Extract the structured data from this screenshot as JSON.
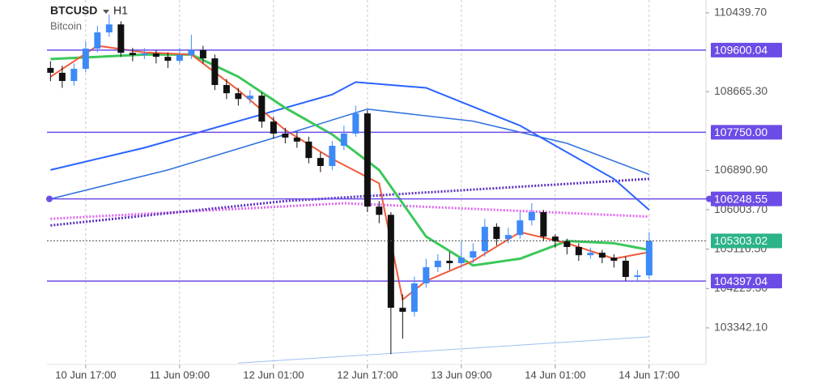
{
  "chart_data": {
    "type": "candlestick",
    "title": "BTCUSD",
    "timeframe": "H1",
    "subtitle": "Bitcoin",
    "xlim": [
      -0.6,
      111.4
    ],
    "ylim": [
      102520,
      110730
    ],
    "xticks": [
      {
        "value": 6,
        "label": "10 Jun 17:00"
      },
      {
        "value": 22,
        "label": "11 Jun 09:00"
      },
      {
        "value": 38,
        "label": "12 Jun 01:00"
      },
      {
        "value": 54,
        "label": "12 Jun 17:00"
      },
      {
        "value": 70,
        "label": "13 Jun 09:00"
      },
      {
        "value": 86,
        "label": "14 Jun 01:00"
      },
      {
        "value": 102,
        "label": "14 Jun 17:00"
      }
    ],
    "yticks": [
      {
        "value": 110439.7,
        "label": "110439.70"
      },
      {
        "value": 108665.3,
        "label": "108665.30"
      },
      {
        "value": 106890.9,
        "label": "106890.90"
      },
      {
        "value": 106003.7,
        "label": "106003.70"
      },
      {
        "value": 105116.5,
        "label": "105116.50"
      },
      {
        "value": 104229.3,
        "label": "104229.30"
      },
      {
        "value": 103342.1,
        "label": "103342.10"
      }
    ],
    "xgrid": true,
    "candles": {
      "up_color": "#3d8af7",
      "down_color": "#111111",
      "x": [
        0,
        2,
        4,
        6,
        8,
        10,
        12,
        14,
        16,
        18,
        20,
        22,
        24,
        26,
        28,
        30,
        32,
        34,
        36,
        38,
        40,
        42,
        44,
        46,
        48,
        50,
        52,
        54,
        56,
        58,
        60,
        62,
        64,
        66,
        68,
        70,
        72,
        74,
        76,
        78,
        80,
        82,
        84,
        86,
        88,
        90,
        92,
        94,
        96,
        98,
        100,
        102
      ],
      "open": [
        109200,
        109090,
        108905,
        109180,
        109635,
        110000,
        110180,
        109540,
        109490,
        109525,
        109450,
        109360,
        109490,
        109600,
        109415,
        108815,
        108630,
        108500,
        108575,
        107990,
        107720,
        107630,
        107540,
        107170,
        106990,
        107445,
        107720,
        108175,
        106075,
        105890,
        103795,
        103705,
        104345,
        104710,
        104855,
        104800,
        104925,
        105070,
        105620,
        105345,
        105435,
        105765,
        105950,
        105400,
        105290,
        105165,
        104980,
        105035,
        104925,
        104855,
        104490,
        104525
      ],
      "high": [
        109350,
        109250,
        109300,
        109800,
        110150,
        110400,
        110250,
        109650,
        109650,
        109600,
        109550,
        109650,
        109950,
        109700,
        109500,
        108950,
        108750,
        108700,
        108650,
        108100,
        107850,
        107750,
        107650,
        107300,
        107550,
        107900,
        108350,
        108250,
        106200,
        105950,
        104100,
        104500,
        104900,
        105000,
        105050,
        105300,
        105250,
        105800,
        105700,
        105600,
        105950,
        106150,
        106000,
        105450,
        105350,
        105250,
        105150,
        105100,
        105000,
        104950,
        104650,
        105500
      ],
      "low": [
        108900,
        108750,
        108800,
        109100,
        109550,
        109900,
        109450,
        109350,
        109400,
        109300,
        109200,
        109300,
        109400,
        109300,
        108700,
        108500,
        108350,
        108400,
        107850,
        107600,
        107500,
        107400,
        107050,
        106850,
        106900,
        107350,
        107650,
        105950,
        105700,
        102750,
        103100,
        103600,
        104250,
        104600,
        104650,
        104700,
        104800,
        104950,
        105200,
        105250,
        105350,
        105650,
        105300,
        105150,
        105000,
        104850,
        104900,
        104800,
        104700,
        104400,
        104380,
        104450
      ],
      "close": [
        109090,
        108905,
        109180,
        109635,
        110000,
        110180,
        109540,
        109490,
        109525,
        109450,
        109360,
        109490,
        109600,
        109415,
        108815,
        108630,
        108500,
        108575,
        107990,
        107720,
        107630,
        107540,
        107170,
        106990,
        107445,
        107720,
        108175,
        106075,
        105890,
        103795,
        103705,
        104345,
        104710,
        104855,
        104800,
        104925,
        105070,
        105620,
        105345,
        105435,
        105765,
        105950,
        105400,
        105290,
        105165,
        104980,
        105035,
        104925,
        104855,
        104490,
        104525,
        105303
      ]
    },
    "series": [
      {
        "color": "#9fbff0",
        "width": 1,
        "style": "solid",
        "x": [
          32,
          102
        ],
        "values": [
          102550,
          103140
        ]
      },
      {
        "color": "#e066f0",
        "width": 3,
        "style": "dotted",
        "x": [
          0,
          50,
          102
        ],
        "values": [
          105800,
          106150,
          105850
        ]
      },
      {
        "color": "#5a2fc0",
        "width": 3,
        "style": "dotted",
        "x": [
          0,
          40,
          102
        ],
        "values": [
          105650,
          106200,
          106700
        ]
      },
      {
        "color": "#2f6fde",
        "width": 1.5,
        "style": "solid",
        "x": [
          0,
          20,
          40,
          54,
          72,
          88,
          102
        ],
        "values": [
          106250,
          106900,
          107700,
          108270,
          108000,
          107500,
          106800
        ]
      },
      {
        "color": "#2962ff",
        "width": 2,
        "style": "solid",
        "x": [
          0,
          16,
          32,
          48,
          52,
          64,
          80,
          96,
          102
        ],
        "values": [
          106900,
          107400,
          108000,
          108600,
          108880,
          108750,
          107900,
          106700,
          106000
        ]
      },
      {
        "color": "#3cc85a",
        "width": 3,
        "style": "solid",
        "x": [
          0,
          8,
          16,
          24,
          32,
          40,
          48,
          56,
          64,
          72,
          80,
          88,
          96,
          102
        ],
        "values": [
          109400,
          109450,
          109500,
          109500,
          109000,
          108300,
          107700,
          106900,
          105400,
          104750,
          104900,
          105300,
          105250,
          105100
        ]
      },
      {
        "color": "#f15a3a",
        "width": 2,
        "style": "solid",
        "x": [
          0,
          8,
          16,
          24,
          32,
          40,
          48,
          56,
          60,
          64,
          72,
          80,
          88,
          96,
          102
        ],
        "values": [
          109000,
          109700,
          109550,
          109500,
          108700,
          107800,
          107150,
          106600,
          103980,
          104400,
          104850,
          105500,
          105250,
          104900,
          105050
        ]
      }
    ],
    "levels": [
      109600.04,
      {
        "value": 107750,
        "label": "107750.00"
      },
      106248.55,
      104397.04
    ],
    "level_color": "#6c4ce6",
    "last_price": 105303.02,
    "last_price_color": "#2bb38a"
  }
}
